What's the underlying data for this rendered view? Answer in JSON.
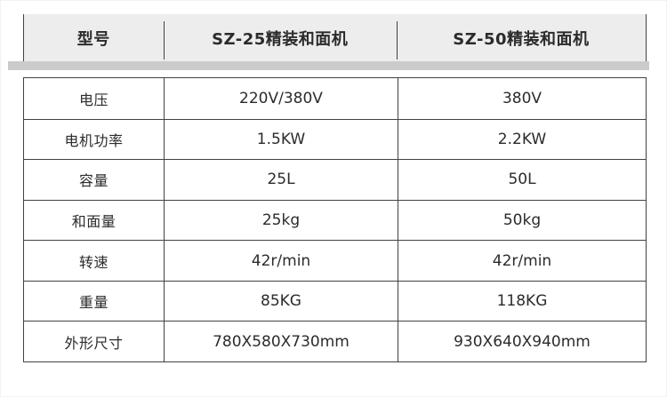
{
  "spec_table": {
    "header": {
      "model_label": "型号",
      "model_a": "SZ-25精装和面机",
      "model_b": "SZ-50精装和面机"
    },
    "rows": [
      {
        "label": "电压",
        "sz25": "220V/380V",
        "sz50": "380V"
      },
      {
        "label": "电机功率",
        "sz25": "1.5KW",
        "sz50": "2.2KW"
      },
      {
        "label": "容量",
        "sz25": "25L",
        "sz50": "50L"
      },
      {
        "label": "和面量",
        "sz25": "25kg",
        "sz50": "50kg"
      },
      {
        "label": "转速",
        "sz25": "42r/min",
        "sz50": "42r/min"
      },
      {
        "label": "重量",
        "sz25": "85KG",
        "sz50": "118KG"
      },
      {
        "label": "外形尺寸",
        "sz25": "780X580X730mm",
        "sz50": "930X640X940mm"
      }
    ],
    "colors": {
      "header_bg": "#ededed",
      "separator_bar": "#cbcbcb",
      "grid_border": "#424242",
      "text": "#2b2b2b"
    }
  }
}
